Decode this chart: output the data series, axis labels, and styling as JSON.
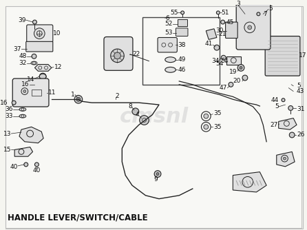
{
  "title": "HANDLE LEVER/SWITCH/CABLE",
  "bg_color": "#f5f5f0",
  "line_color": "#222222",
  "text_color": "#111111",
  "title_fontsize": 8.5,
  "watermark_text": "cmsnl",
  "watermark_color": "#cccccc",
  "border_color": "#bbbbbb",
  "fig_width": 4.46,
  "fig_height": 3.34,
  "dpi": 100
}
